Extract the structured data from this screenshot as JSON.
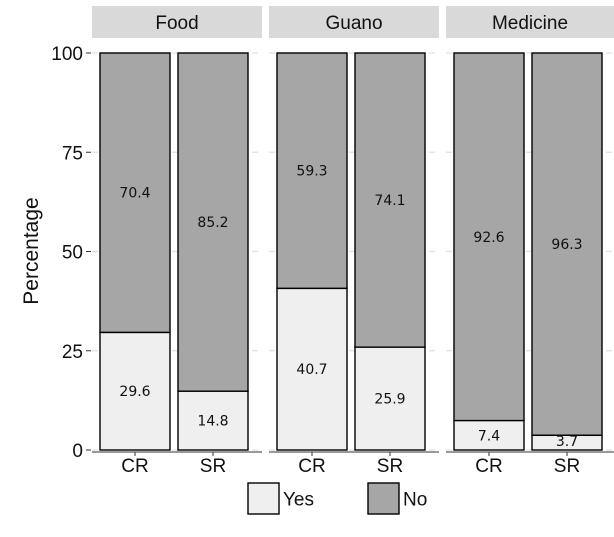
{
  "chart_data": {
    "type": "bar",
    "stacked": true,
    "ylabel": "Percentage",
    "xlabel": "",
    "ylim": [
      0,
      100
    ],
    "yticks": [
      "0",
      "25",
      "50",
      "75",
      "100"
    ],
    "grid": true,
    "legend_position": "bottom",
    "legend": [
      {
        "name": "Yes",
        "color": "#efefef"
      },
      {
        "name": "No",
        "color": "#a6a6a6"
      }
    ],
    "panels": [
      {
        "label": "Food",
        "categories": [
          "CR",
          "SR"
        ],
        "series": [
          {
            "name": "Yes",
            "values": [
              29.6,
              14.8
            ],
            "labels": [
              "29.6",
              "14.8"
            ]
          },
          {
            "name": "No",
            "values": [
              70.4,
              85.2
            ],
            "labels": [
              "70.4",
              "85.2"
            ]
          }
        ]
      },
      {
        "label": "Guano",
        "categories": [
          "CR",
          "SR"
        ],
        "series": [
          {
            "name": "Yes",
            "values": [
              40.7,
              25.9
            ],
            "labels": [
              "40.7",
              "25.9"
            ]
          },
          {
            "name": "No",
            "values": [
              59.3,
              74.1
            ],
            "labels": [
              "59.3",
              "74.1"
            ]
          }
        ]
      },
      {
        "label": "Medicine",
        "categories": [
          "CR",
          "SR"
        ],
        "series": [
          {
            "name": "Yes",
            "values": [
              7.4,
              3.7
            ],
            "labels": [
              "7.4",
              "3.7"
            ]
          },
          {
            "name": "No",
            "values": [
              92.6,
              96.3
            ],
            "labels": [
              "92.6",
              "96.3"
            ]
          }
        ]
      }
    ],
    "colors": {
      "yes": "#efefef",
      "no": "#a6a6a6",
      "strip": "#d9d9d9",
      "grid": "#e0e0e0",
      "stroke": "#000000"
    }
  }
}
